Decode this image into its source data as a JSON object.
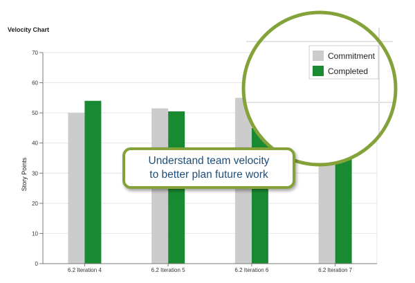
{
  "chart_data": {
    "type": "bar",
    "title": "Velocity Chart",
    "xlabel": "",
    "ylabel": "Story Points",
    "ylim": [
      0,
      70
    ],
    "yticks": [
      0,
      10,
      20,
      30,
      40,
      50,
      60,
      70
    ],
    "grid": true,
    "categories": [
      "6.2 Iteration 4",
      "6.2 Iteration 5",
      "6.2 Iteration 6",
      "6.2 Iteration 7"
    ],
    "series": [
      {
        "name": "Commitment",
        "color": "#cccccc",
        "values": [
          50,
          51.5,
          55,
          46.5
        ]
      },
      {
        "name": "Completed",
        "color": "#1a8a32",
        "values": [
          54,
          50.5,
          45,
          47.5
        ]
      }
    ],
    "legend_position": "top-right"
  },
  "callout": {
    "line1": "Understand team velocity",
    "line2": "to better plan future work"
  }
}
